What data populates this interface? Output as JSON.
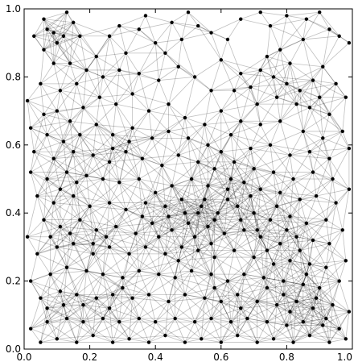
{
  "chart_data": {
    "type": "scatter",
    "subtype": "random geometric graph",
    "title": "",
    "xlabel": "",
    "ylabel": "",
    "xlim": [
      0.0,
      1.0
    ],
    "ylim": [
      0.0,
      1.0
    ],
    "x_ticks": [
      "0.0",
      "0.2",
      "0.4",
      "0.6",
      "0.8",
      "1.0"
    ],
    "y_ticks": [
      "0.0",
      "0.2",
      "0.4",
      "0.6",
      "0.8",
      "1.0"
    ],
    "grid": false,
    "legend": "none",
    "node_color": "#000000",
    "edge_color": "#000000",
    "edge_opacity": 0.25,
    "connection_radius": 0.125,
    "nodes": [
      [
        0.06,
        0.97
      ],
      [
        0.09,
        0.93
      ],
      [
        0.13,
        0.99
      ],
      [
        0.15,
        0.96
      ],
      [
        0.06,
        0.88
      ],
      [
        0.03,
        0.92
      ],
      [
        0.1,
        0.9
      ],
      [
        0.09,
        0.84
      ],
      [
        0.14,
        0.84
      ],
      [
        0.22,
        0.86
      ],
      [
        0.26,
        0.92
      ],
      [
        0.29,
        0.95
      ],
      [
        0.35,
        0.94
      ],
      [
        0.37,
        0.98
      ],
      [
        0.4,
        0.9
      ],
      [
        0.43,
        0.87
      ],
      [
        0.48,
        0.91
      ],
      [
        0.5,
        0.99
      ],
      [
        0.53,
        0.95
      ],
      [
        0.57,
        0.93
      ],
      [
        0.6,
        0.85
      ],
      [
        0.66,
        0.97
      ],
      [
        0.72,
        0.99
      ],
      [
        0.75,
        0.95
      ],
      [
        0.8,
        0.98
      ],
      [
        0.86,
        0.97
      ],
      [
        0.9,
        0.99
      ],
      [
        0.93,
        0.94
      ],
      [
        0.96,
        0.92
      ],
      [
        0.99,
        0.9
      ],
      [
        0.78,
        0.88
      ],
      [
        0.72,
        0.82
      ],
      [
        0.66,
        0.81
      ],
      [
        0.69,
        0.77
      ],
      [
        0.76,
        0.8
      ],
      [
        0.8,
        0.78
      ],
      [
        0.84,
        0.76
      ],
      [
        0.88,
        0.79
      ],
      [
        0.91,
        0.83
      ],
      [
        0.95,
        0.78
      ],
      [
        0.98,
        0.74
      ],
      [
        0.93,
        0.69
      ],
      [
        0.87,
        0.71
      ],
      [
        0.83,
        0.72
      ],
      [
        0.77,
        0.74
      ],
      [
        0.71,
        0.72
      ],
      [
        0.64,
        0.76
      ],
      [
        0.57,
        0.76
      ],
      [
        0.52,
        0.8
      ],
      [
        0.47,
        0.83
      ],
      [
        0.41,
        0.79
      ],
      [
        0.35,
        0.81
      ],
      [
        0.29,
        0.82
      ],
      [
        0.24,
        0.8
      ],
      [
        0.19,
        0.82
      ],
      [
        0.16,
        0.78
      ],
      [
        0.11,
        0.76
      ],
      [
        0.05,
        0.78
      ],
      [
        0.01,
        0.73
      ],
      [
        0.06,
        0.69
      ],
      [
        0.1,
        0.7
      ],
      [
        0.14,
        0.67
      ],
      [
        0.18,
        0.71
      ],
      [
        0.23,
        0.74
      ],
      [
        0.28,
        0.72
      ],
      [
        0.33,
        0.75
      ],
      [
        0.38,
        0.7
      ],
      [
        0.44,
        0.72
      ],
      [
        0.49,
        0.68
      ],
      [
        0.55,
        0.66
      ],
      [
        0.6,
        0.7
      ],
      [
        0.66,
        0.67
      ],
      [
        0.72,
        0.66
      ],
      [
        0.78,
        0.67
      ],
      [
        0.85,
        0.64
      ],
      [
        0.91,
        0.62
      ],
      [
        0.97,
        0.64
      ],
      [
        0.99,
        0.59
      ],
      [
        0.93,
        0.56
      ],
      [
        0.87,
        0.58
      ],
      [
        0.81,
        0.57
      ],
      [
        0.75,
        0.6
      ],
      [
        0.69,
        0.59
      ],
      [
        0.63,
        0.63
      ],
      [
        0.56,
        0.6
      ],
      [
        0.5,
        0.62
      ],
      [
        0.44,
        0.64
      ],
      [
        0.39,
        0.62
      ],
      [
        0.33,
        0.65
      ],
      [
        0.27,
        0.63
      ],
      [
        0.22,
        0.66
      ],
      [
        0.17,
        0.63
      ],
      [
        0.12,
        0.61
      ],
      [
        0.07,
        0.63
      ],
      [
        0.02,
        0.65
      ],
      [
        0.03,
        0.58
      ],
      [
        0.09,
        0.56
      ],
      [
        0.15,
        0.58
      ],
      [
        0.21,
        0.57
      ],
      [
        0.26,
        0.55
      ],
      [
        0.31,
        0.58
      ],
      [
        0.36,
        0.56
      ],
      [
        0.42,
        0.54
      ],
      [
        0.47,
        0.57
      ],
      [
        0.53,
        0.55
      ],
      [
        0.58,
        0.53
      ],
      [
        0.64,
        0.55
      ],
      [
        0.7,
        0.53
      ],
      [
        0.76,
        0.52
      ],
      [
        0.82,
        0.5
      ],
      [
        0.88,
        0.52
      ],
      [
        0.94,
        0.5
      ],
      [
        0.99,
        0.47
      ],
      [
        0.95,
        0.43
      ],
      [
        0.89,
        0.45
      ],
      [
        0.84,
        0.44
      ],
      [
        0.78,
        0.46
      ],
      [
        0.72,
        0.47
      ],
      [
        0.67,
        0.49
      ],
      [
        0.62,
        0.47
      ],
      [
        0.56,
        0.48
      ],
      [
        0.51,
        0.5
      ],
      [
        0.45,
        0.48
      ],
      [
        0.4,
        0.46
      ],
      [
        0.35,
        0.5
      ],
      [
        0.29,
        0.49
      ],
      [
        0.24,
        0.5
      ],
      [
        0.19,
        0.51
      ],
      [
        0.13,
        0.52
      ],
      [
        0.07,
        0.5
      ],
      [
        0.02,
        0.52
      ],
      [
        0.04,
        0.45
      ],
      [
        0.09,
        0.43
      ],
      [
        0.15,
        0.45
      ],
      [
        0.2,
        0.42
      ],
      [
        0.26,
        0.43
      ],
      [
        0.31,
        0.41
      ],
      [
        0.37,
        0.43
      ],
      [
        0.43,
        0.42
      ],
      [
        0.48,
        0.44
      ],
      [
        0.54,
        0.42
      ],
      [
        0.59,
        0.4
      ],
      [
        0.65,
        0.42
      ],
      [
        0.7,
        0.4
      ],
      [
        0.75,
        0.38
      ],
      [
        0.81,
        0.39
      ],
      [
        0.86,
        0.37
      ],
      [
        0.92,
        0.38
      ],
      [
        0.97,
        0.35
      ],
      [
        0.93,
        0.31
      ],
      [
        0.88,
        0.32
      ],
      [
        0.83,
        0.33
      ],
      [
        0.78,
        0.31
      ],
      [
        0.72,
        0.33
      ],
      [
        0.67,
        0.35
      ],
      [
        0.61,
        0.34
      ],
      [
        0.56,
        0.36
      ],
      [
        0.5,
        0.37
      ],
      [
        0.45,
        0.35
      ],
      [
        0.39,
        0.37
      ],
      [
        0.34,
        0.34
      ],
      [
        0.28,
        0.36
      ],
      [
        0.22,
        0.35
      ],
      [
        0.17,
        0.38
      ],
      [
        0.11,
        0.36
      ],
      [
        0.06,
        0.38
      ],
      [
        0.01,
        0.33
      ],
      [
        0.04,
        0.28
      ],
      [
        0.1,
        0.3
      ],
      [
        0.15,
        0.31
      ],
      [
        0.21,
        0.28
      ],
      [
        0.26,
        0.3
      ],
      [
        0.32,
        0.28
      ],
      [
        0.37,
        0.3
      ],
      [
        0.43,
        0.28
      ],
      [
        0.48,
        0.3
      ],
      [
        0.53,
        0.29
      ],
      [
        0.58,
        0.27
      ],
      [
        0.64,
        0.29
      ],
      [
        0.7,
        0.27
      ],
      [
        0.76,
        0.25
      ],
      [
        0.81,
        0.26
      ],
      [
        0.87,
        0.25
      ],
      [
        0.92,
        0.24
      ],
      [
        0.98,
        0.26
      ],
      [
        0.96,
        0.2
      ],
      [
        0.9,
        0.18
      ],
      [
        0.85,
        0.19
      ],
      [
        0.79,
        0.2
      ],
      [
        0.73,
        0.21
      ],
      [
        0.67,
        0.22
      ],
      [
        0.62,
        0.2
      ],
      [
        0.57,
        0.22
      ],
      [
        0.51,
        0.23
      ],
      [
        0.46,
        0.21
      ],
      [
        0.41,
        0.22
      ],
      [
        0.35,
        0.23
      ],
      [
        0.3,
        0.21
      ],
      [
        0.24,
        0.22
      ],
      [
        0.19,
        0.23
      ],
      [
        0.13,
        0.24
      ],
      [
        0.08,
        0.22
      ],
      [
        0.02,
        0.2
      ],
      [
        0.05,
        0.15
      ],
      [
        0.11,
        0.17
      ],
      [
        0.16,
        0.16
      ],
      [
        0.22,
        0.15
      ],
      [
        0.27,
        0.16
      ],
      [
        0.33,
        0.15
      ],
      [
        0.38,
        0.16
      ],
      [
        0.44,
        0.14
      ],
      [
        0.49,
        0.16
      ],
      [
        0.55,
        0.15
      ],
      [
        0.6,
        0.14
      ],
      [
        0.65,
        0.16
      ],
      [
        0.71,
        0.14
      ],
      [
        0.77,
        0.13
      ],
      [
        0.83,
        0.14
      ],
      [
        0.88,
        0.12
      ],
      [
        0.94,
        0.13
      ],
      [
        0.99,
        0.11
      ],
      [
        0.96,
        0.06
      ],
      [
        0.91,
        0.07
      ],
      [
        0.85,
        0.08
      ],
      [
        0.8,
        0.07
      ],
      [
        0.74,
        0.08
      ],
      [
        0.68,
        0.09
      ],
      [
        0.63,
        0.08
      ],
      [
        0.57,
        0.09
      ],
      [
        0.52,
        0.08
      ],
      [
        0.46,
        0.09
      ],
      [
        0.4,
        0.08
      ],
      [
        0.35,
        0.09
      ],
      [
        0.29,
        0.08
      ],
      [
        0.24,
        0.09
      ],
      [
        0.18,
        0.08
      ],
      [
        0.13,
        0.09
      ],
      [
        0.07,
        0.08
      ],
      [
        0.02,
        0.06
      ],
      [
        0.05,
        0.02
      ],
      [
        0.1,
        0.03
      ],
      [
        0.16,
        0.02
      ],
      [
        0.21,
        0.04
      ],
      [
        0.27,
        0.02
      ],
      [
        0.32,
        0.03
      ],
      [
        0.38,
        0.02
      ],
      [
        0.43,
        0.04
      ],
      [
        0.49,
        0.02
      ],
      [
        0.54,
        0.03
      ],
      [
        0.6,
        0.02
      ],
      [
        0.65,
        0.04
      ],
      [
        0.71,
        0.02
      ],
      [
        0.76,
        0.03
      ],
      [
        0.82,
        0.02
      ],
      [
        0.87,
        0.04
      ],
      [
        0.93,
        0.02
      ],
      [
        0.98,
        0.03
      ],
      [
        0.12,
        0.92
      ],
      [
        0.07,
        0.94
      ],
      [
        0.17,
        0.92
      ],
      [
        0.31,
        0.87
      ],
      [
        0.45,
        0.96
      ],
      [
        0.62,
        0.91
      ],
      [
        0.85,
        0.91
      ],
      [
        0.81,
        0.84
      ],
      [
        0.74,
        0.86
      ],
      [
        0.9,
        0.74
      ],
      [
        0.6,
        0.58
      ],
      [
        0.55,
        0.44
      ],
      [
        0.58,
        0.38
      ],
      [
        0.53,
        0.4
      ],
      [
        0.62,
        0.44
      ],
      [
        0.66,
        0.38
      ],
      [
        0.49,
        0.4
      ],
      [
        0.57,
        0.31
      ],
      [
        0.44,
        0.39
      ],
      [
        0.69,
        0.45
      ],
      [
        0.63,
        0.5
      ],
      [
        0.77,
        0.42
      ],
      [
        0.8,
        0.35
      ],
      [
        0.84,
        0.29
      ],
      [
        0.79,
        0.16
      ],
      [
        0.74,
        0.18
      ],
      [
        0.25,
        0.33
      ],
      [
        0.21,
        0.31
      ],
      [
        0.14,
        0.34
      ],
      [
        0.08,
        0.33
      ],
      [
        0.18,
        0.13
      ],
      [
        0.12,
        0.13
      ],
      [
        0.07,
        0.12
      ],
      [
        0.26,
        0.12
      ],
      [
        0.3,
        0.18
      ],
      [
        0.58,
        0.18
      ],
      [
        0.66,
        0.12
      ],
      [
        0.81,
        0.11
      ],
      [
        0.89,
        0.15
      ],
      [
        0.92,
        0.09
      ],
      [
        0.86,
        0.22
      ],
      [
        0.71,
        0.35
      ],
      [
        0.74,
        0.29
      ],
      [
        0.27,
        0.59
      ],
      [
        0.32,
        0.61
      ],
      [
        0.11,
        0.47
      ],
      [
        0.16,
        0.49
      ],
      [
        0.36,
        0.39
      ],
      [
        0.41,
        0.33
      ],
      [
        0.47,
        0.26
      ],
      [
        0.52,
        0.33
      ]
    ]
  }
}
